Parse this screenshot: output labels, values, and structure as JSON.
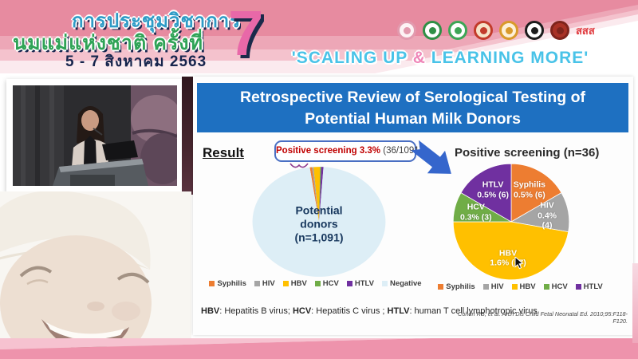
{
  "banner": {
    "title_line1": "การประชุมวิชาการ",
    "title_line2": "นมแม่แห่งชาติ ครั้งที่",
    "date_line": "5 - 7 สิงหาคม 2563",
    "edition_number": "7",
    "slogan_prefix": "'SCALING UP ",
    "slogan_amp": "&",
    "slogan_suffix": " LEARNING MORE'",
    "slogan_color": "#49c3e8",
    "slogan_amp_color": "#ef86b8",
    "band_colors": [
      "#e78ba0",
      "#eda7b7",
      "#f4c2cd",
      "#fbeaee"
    ],
    "logos": [
      {
        "name": "mother-and-child-foundation",
        "bg": "#fdf3f5",
        "ring": "#e29aae"
      },
      {
        "name": "green-medical-council",
        "bg": "#ffffff",
        "ring": "#2f8f46"
      },
      {
        "name": "green-health-association",
        "bg": "#ffffff",
        "ring": "#3da556"
      },
      {
        "name": "royal-college-red-gold",
        "bg": "#f6e3c8",
        "ring": "#c23b2a"
      },
      {
        "name": "royal-institute-gold",
        "bg": "#fdf0d8",
        "ring": "#d99a2b"
      },
      {
        "name": "black-university-seal",
        "bg": "#ffffff",
        "ring": "#1c1c1c"
      },
      {
        "name": "red-college-seal",
        "bg": "#a93226",
        "ring": "#7e241c"
      },
      {
        "name": "thai-health-promotion",
        "text": "สสส",
        "color": "#e03a3e"
      }
    ]
  },
  "slide": {
    "title_line1": "Retrospective Review of Serological Testing of",
    "title_line2": "Potential Human Milk Donors",
    "title_bar_color": "#1e70c1",
    "result_label": "Result",
    "callout": {
      "highlight": "Positive screening 3.3%",
      "detail": " (36/1091)",
      "highlight_color": "#c00000"
    },
    "footnote_parts": [
      [
        "HBV",
        ": Hepatitis B virus; "
      ],
      [
        "HCV",
        ": Hepatitis C virus ; "
      ],
      [
        "HTLV",
        ": human T cell lymphotropic virus"
      ]
    ],
    "citation": "Cohen RS, et al. Arch Dis Child Fetal Neonatal Ed. 2010;95:F118-F120.",
    "arrow_color": "#3566cc"
  },
  "chart_data": [
    {
      "type": "pie",
      "title": "Potential donors\n(n=1,091)",
      "total": 1091,
      "labels": [
        "Syphilis",
        "HIV",
        "HBV",
        "HCV",
        "HTLV",
        "Negative"
      ],
      "values": [
        6,
        4,
        17,
        3,
        6,
        1055
      ],
      "colors": [
        "#ED7D31",
        "#A5A5A5",
        "#FFC000",
        "#70AD47",
        "#7030A0",
        "#DDEEF6"
      ],
      "start_angle_deg": -98,
      "legend": [
        "Syphilis",
        "HIV",
        "HBV",
        "HCV",
        "HTLV",
        "Negative"
      ],
      "legend_position": "bottom",
      "annotation": "Positive screening 3.3% (36/1091)"
    },
    {
      "type": "pie",
      "title": "Positive screening (n=36)",
      "total": 36,
      "labels": [
        "Syphilis",
        "HIV",
        "HBV",
        "HCV",
        "HTLV"
      ],
      "values": [
        6,
        4,
        17,
        3,
        6
      ],
      "percents": [
        0.5,
        0.4,
        1.6,
        0.3,
        0.5
      ],
      "slice_labels": [
        "Syphilis\n0.5% (6)",
        "HIV\n0.4% (4)",
        "HBV\n1.6% (17)",
        "HCV\n0.3% (3)",
        "HTLV\n0.5% (6)"
      ],
      "colors": [
        "#ED7D31",
        "#A5A5A5",
        "#FFC000",
        "#70AD47",
        "#7030A0"
      ],
      "start_angle_deg": -90,
      "legend": [
        "Syphilis",
        "HIV",
        "HBV",
        "HCV",
        "HTLV"
      ],
      "legend_position": "bottom"
    }
  ]
}
